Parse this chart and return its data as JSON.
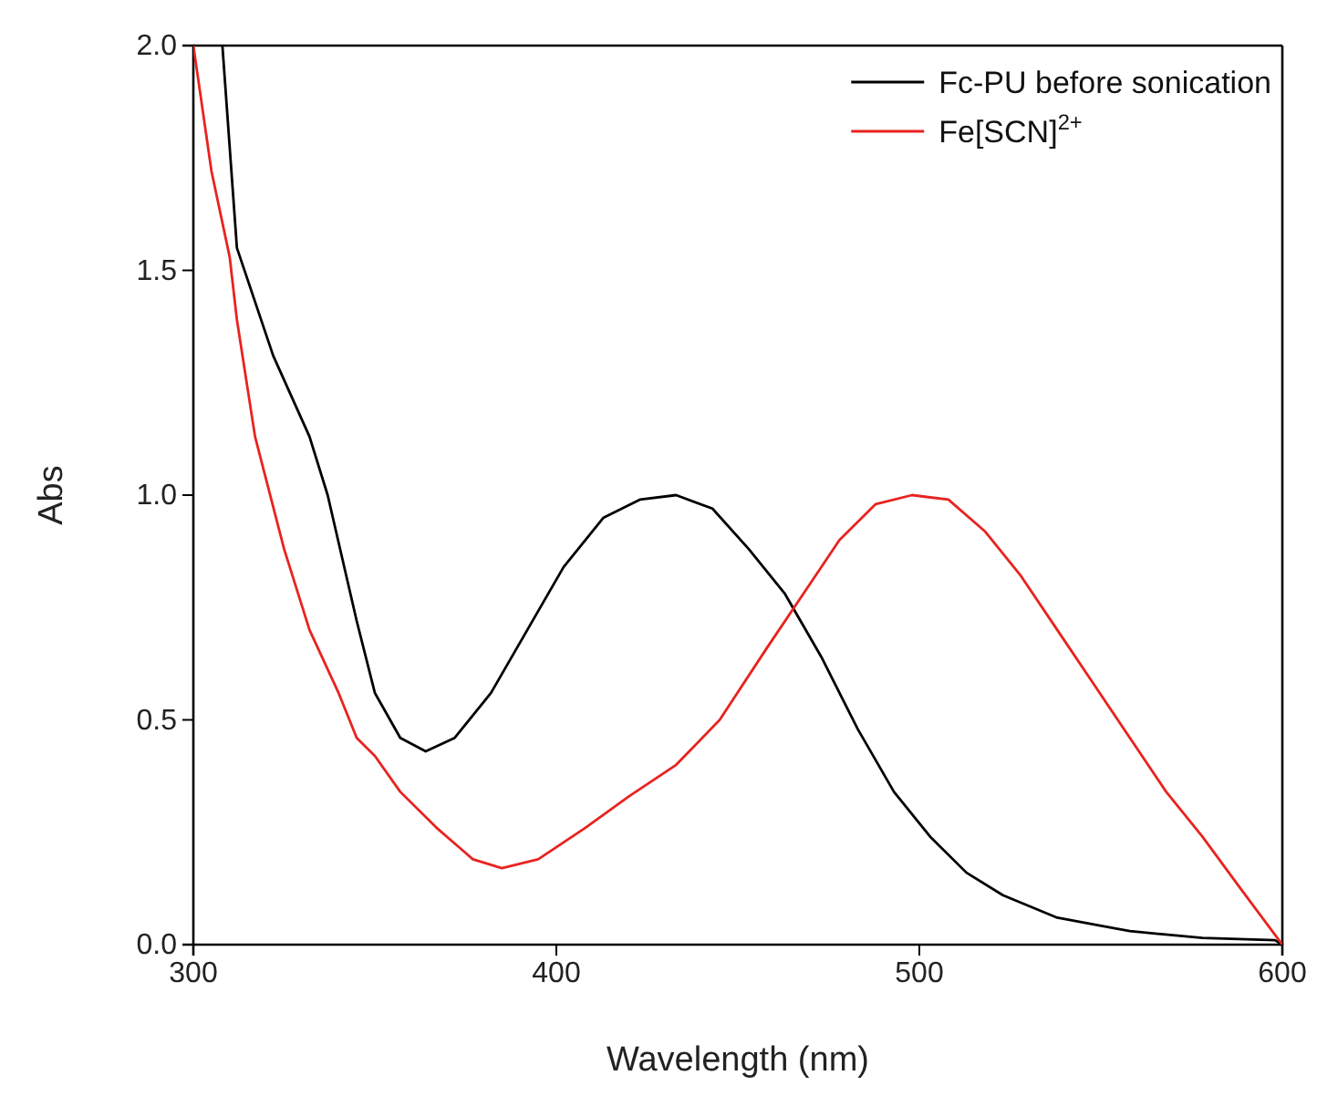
{
  "chart_data": {
    "type": "line",
    "xlabel": "Wavelength (nm)",
    "ylabel": "Abs",
    "xlim": [
      300,
      600
    ],
    "ylim": [
      0,
      2.0
    ],
    "xticks": [
      300,
      400,
      500,
      600
    ],
    "yticks": [
      {
        "value": 0,
        "label": "0.0"
      },
      {
        "value": 0.5,
        "label": "0.5"
      },
      {
        "value": 1,
        "label": "1.0"
      },
      {
        "value": 1.5,
        "label": "1.5"
      },
      {
        "value": 2,
        "label": "2.0"
      }
    ],
    "legend": "top right",
    "grid": false,
    "marker": "none",
    "line_style": "solid",
    "series": [
      {
        "name": "Fc-PU before sonication",
        "color": "#000000",
        "x": [
          308,
          312,
          322,
          332,
          337,
          345,
          350,
          357,
          364,
          372,
          382,
          392,
          402,
          413,
          423,
          433,
          443,
          453,
          463,
          473,
          483,
          493,
          503,
          513,
          523,
          538,
          558,
          578,
          598,
          600
        ],
        "values": [
          2.0,
          1.55,
          1.31,
          1.13,
          1.0,
          0.72,
          0.56,
          0.46,
          0.43,
          0.46,
          0.56,
          0.7,
          0.84,
          0.95,
          0.99,
          1.0,
          0.97,
          0.88,
          0.78,
          0.64,
          0.48,
          0.34,
          0.24,
          0.16,
          0.11,
          0.06,
          0.03,
          0.015,
          0.01,
          0.0
        ]
      },
      {
        "name": "Fe[SCN]$^{2+}$",
        "color": "#e8231f",
        "x": [
          300,
          305,
          310,
          312,
          317,
          325,
          332,
          340,
          345,
          350,
          357,
          367,
          377,
          385,
          395,
          408,
          420,
          433,
          445,
          458,
          468,
          478,
          488,
          498,
          508,
          518,
          528,
          538,
          548,
          558,
          568,
          578,
          588,
          600
        ],
        "values": [
          2.0,
          1.72,
          1.53,
          1.39,
          1.13,
          0.88,
          0.7,
          0.56,
          0.46,
          0.42,
          0.34,
          0.26,
          0.19,
          0.17,
          0.19,
          0.26,
          0.33,
          0.4,
          0.5,
          0.66,
          0.78,
          0.9,
          0.98,
          1.0,
          0.99,
          0.92,
          0.82,
          0.7,
          0.58,
          0.46,
          0.34,
          0.24,
          0.13,
          0.0
        ]
      }
    ]
  }
}
